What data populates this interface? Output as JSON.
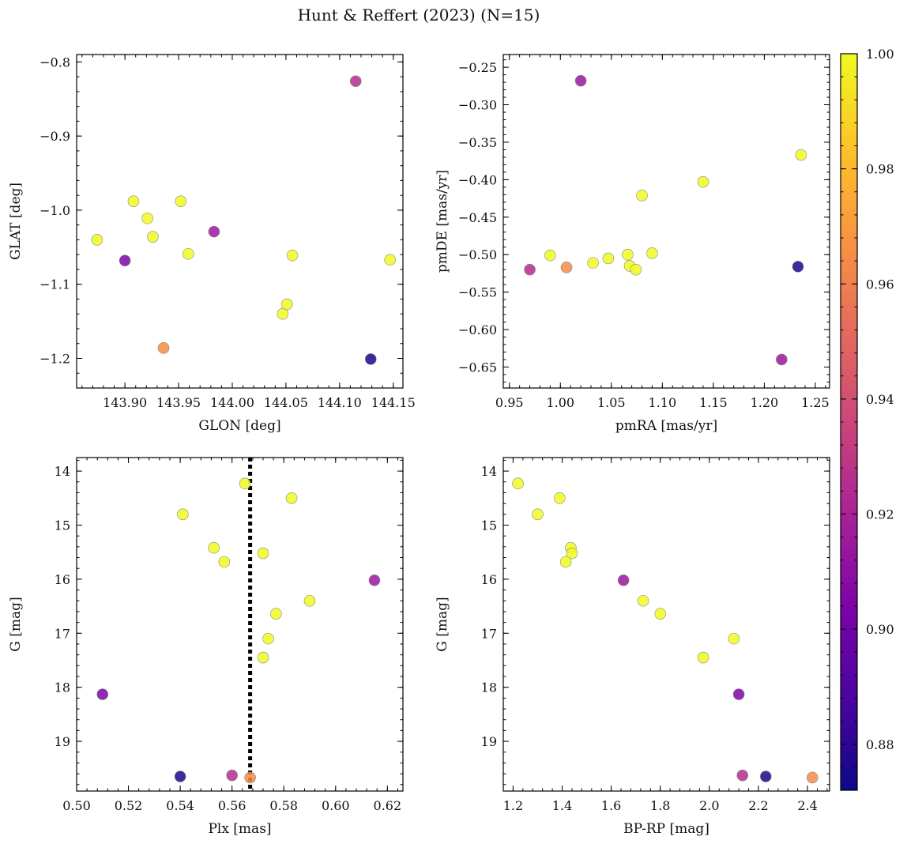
{
  "figure": {
    "title": "Hunt & Reffert (2023) (N=15)",
    "colormap": "plasma"
  },
  "colorbar": {
    "range": [
      0.872,
      1.0
    ],
    "ticks": [
      0.88,
      0.9,
      0.92,
      0.94,
      0.96,
      0.98,
      1.0
    ],
    "tick_labels": [
      "0.88",
      "0.90",
      "0.92",
      "0.94",
      "0.96",
      "0.98",
      "1.00"
    ]
  },
  "chart_data": [
    {
      "type": "scatter",
      "xlabel": "GLON [deg]",
      "ylabel": "GLAT [deg]",
      "xlim": [
        143.855,
        144.159
      ],
      "ylim": [
        -1.24,
        -0.79
      ],
      "y_inverted": false,
      "xticks": [
        143.9,
        143.95,
        144.0,
        144.05,
        144.1,
        144.15
      ],
      "xtick_labels": [
        "143.90",
        "143.95",
        "144.00",
        "144.05",
        "144.10",
        "144.15"
      ],
      "yticks": [
        -0.8,
        -0.9,
        -1.0,
        -1.1,
        -1.2
      ],
      "ytick_labels": [
        "−0.8",
        "−0.9",
        "−1.0",
        "−1.1",
        "−1.2"
      ],
      "x": [
        143.874,
        143.908,
        143.9,
        143.921,
        143.926,
        143.936,
        143.952,
        143.959,
        143.983,
        144.047,
        144.051,
        144.056,
        144.115,
        144.129,
        144.147
      ],
      "y": [
        -1.04,
        -0.988,
        -1.068,
        -1.011,
        -1.036,
        -1.186,
        -0.988,
        -1.059,
        -1.029,
        -1.14,
        -1.127,
        -1.061,
        -0.826,
        -1.201,
        -1.067
      ],
      "c": [
        1.0,
        1.0,
        0.905,
        1.0,
        1.0,
        0.965,
        1.0,
        1.0,
        0.915,
        1.0,
        1.0,
        1.0,
        0.925,
        0.875,
        1.0
      ]
    },
    {
      "type": "scatter",
      "xlabel": "pmRA [mas/yr]",
      "ylabel": "pmDE [mas/yr]",
      "xlim": [
        0.944,
        1.264
      ],
      "ylim": [
        -0.678,
        -0.233
      ],
      "y_inverted": false,
      "xticks": [
        0.95,
        1.0,
        1.05,
        1.1,
        1.15,
        1.2,
        1.25
      ],
      "xtick_labels": [
        "0.95",
        "1.00",
        "1.05",
        "1.10",
        "1.15",
        "1.20",
        "1.25"
      ],
      "yticks": [
        -0.25,
        -0.3,
        -0.35,
        -0.4,
        -0.45,
        -0.5,
        -0.55,
        -0.6,
        -0.65
      ],
      "ytick_labels": [
        "−0.25",
        "−0.30",
        "−0.35",
        "−0.40",
        "−0.45",
        "−0.50",
        "−0.55",
        "−0.60",
        "−0.65"
      ],
      "x": [
        0.97,
        0.99,
        1.006,
        1.02,
        1.032,
        1.047,
        1.066,
        1.068,
        1.074,
        1.08,
        1.09,
        1.14,
        1.217,
        1.233,
        1.236
      ],
      "y": [
        -0.52,
        -0.501,
        -0.517,
        -0.268,
        -0.511,
        -0.505,
        -0.5,
        -0.515,
        -0.52,
        -0.421,
        -0.498,
        -0.403,
        -0.64,
        -0.516,
        -0.367
      ],
      "c": [
        0.925,
        1.0,
        0.965,
        0.915,
        1.0,
        1.0,
        1.0,
        1.0,
        1.0,
        1.0,
        1.0,
        1.0,
        0.915,
        0.875,
        1.0
      ]
    },
    {
      "type": "scatter",
      "xlabel": "Plx [mas]",
      "ylabel": "G [mag]",
      "xlim": [
        0.5,
        0.626
      ],
      "ylim": [
        13.75,
        19.92
      ],
      "y_inverted": true,
      "xticks": [
        0.5,
        0.52,
        0.54,
        0.56,
        0.58,
        0.6,
        0.62
      ],
      "xtick_labels": [
        "0.50",
        "0.52",
        "0.54",
        "0.56",
        "0.58",
        "0.60",
        "0.62"
      ],
      "yticks": [
        14,
        15,
        16,
        17,
        18,
        19
      ],
      "ytick_labels": [
        "14",
        "15",
        "16",
        "17",
        "18",
        "19"
      ],
      "vline": 0.567,
      "x": [
        0.565,
        0.583,
        0.541,
        0.553,
        0.572,
        0.557,
        0.615,
        0.59,
        0.577,
        0.574,
        0.572,
        0.51,
        0.54,
        0.56,
        0.567
      ],
      "y": [
        14.23,
        14.5,
        14.8,
        15.42,
        15.52,
        15.68,
        16.02,
        16.4,
        16.64,
        17.1,
        17.45,
        18.13,
        19.65,
        19.63,
        19.67
      ],
      "c": [
        1.0,
        1.0,
        1.0,
        1.0,
        1.0,
        1.0,
        0.915,
        1.0,
        1.0,
        1.0,
        1.0,
        0.905,
        0.875,
        0.925,
        0.965
      ]
    },
    {
      "type": "scatter",
      "xlabel": "BP-RP [mag]",
      "ylabel": "G [mag]",
      "xlim": [
        1.16,
        2.49
      ],
      "ylim": [
        13.75,
        19.92
      ],
      "y_inverted": true,
      "xticks": [
        1.2,
        1.4,
        1.6,
        1.8,
        2.0,
        2.2,
        2.4
      ],
      "xtick_labels": [
        "1.2",
        "1.4",
        "1.6",
        "1.8",
        "2.0",
        "2.2",
        "2.4"
      ],
      "yticks": [
        14,
        15,
        16,
        17,
        18,
        19
      ],
      "ytick_labels": [
        "14",
        "15",
        "16",
        "17",
        "18",
        "19"
      ],
      "x": [
        1.22,
        1.39,
        1.3,
        1.435,
        1.44,
        1.415,
        1.65,
        1.73,
        1.8,
        2.1,
        1.975,
        2.12,
        2.23,
        2.135,
        2.42
      ],
      "y": [
        14.23,
        14.5,
        14.8,
        15.42,
        15.52,
        15.68,
        16.02,
        16.4,
        16.64,
        17.1,
        17.45,
        18.13,
        19.65,
        19.63,
        19.67
      ],
      "c": [
        1.0,
        1.0,
        1.0,
        1.0,
        1.0,
        1.0,
        0.915,
        1.0,
        1.0,
        1.0,
        1.0,
        0.905,
        0.875,
        0.925,
        0.965
      ]
    }
  ]
}
